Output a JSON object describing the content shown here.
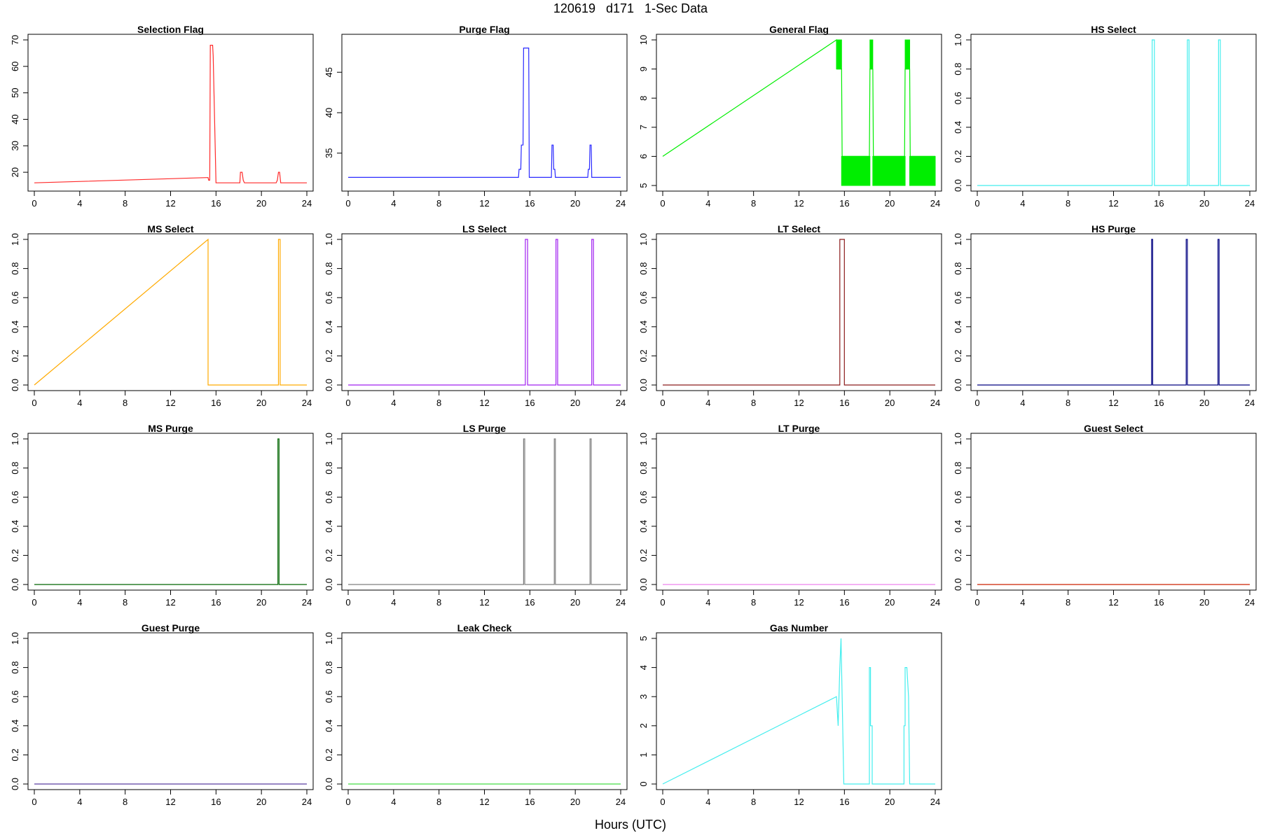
{
  "figure": {
    "title": "120619   d171   1-Sec Data",
    "xlabel": "Hours (UTC)"
  },
  "chart_data": [
    {
      "type": "line",
      "title": "Selection Flag",
      "color": "#ff2a2a",
      "xlim": [
        0,
        24
      ],
      "ylim": [
        15,
        70
      ],
      "xticks": [
        0,
        4,
        8,
        12,
        16,
        20,
        24
      ],
      "yticks": [
        20,
        30,
        40,
        50,
        60,
        70
      ],
      "series": [
        {
          "name": "Selection Flag",
          "x": [
            0,
            15.2,
            15.3,
            15.35,
            15.45,
            15.5,
            15.7,
            15.75,
            16,
            18.1,
            18.15,
            18.3,
            18.4,
            18.5,
            21.3,
            21.4,
            21.5,
            21.6,
            21.7,
            24
          ],
          "y": [
            16,
            18,
            18,
            17,
            17,
            68,
            68,
            64,
            16,
            16,
            20,
            20,
            17,
            16,
            16,
            17,
            20,
            20,
            16,
            16
          ]
        }
      ]
    },
    {
      "type": "line",
      "title": "Purge Flag",
      "color": "#2a2aff",
      "xlim": [
        0,
        24
      ],
      "ylim": [
        31,
        49
      ],
      "xticks": [
        0,
        4,
        8,
        12,
        16,
        20,
        24
      ],
      "yticks": [
        35,
        40,
        45
      ],
      "series": [
        {
          "name": "Purge Flag",
          "x": [
            0,
            15,
            15.05,
            15.2,
            15.25,
            15.4,
            15.45,
            15.5,
            15.55,
            15.9,
            15.95,
            17.9,
            17.95,
            18.05,
            18.1,
            18.2,
            18.25,
            21.1,
            21.15,
            21.25,
            21.3,
            21.4,
            21.45,
            24
          ],
          "y": [
            32,
            32,
            33,
            33,
            36,
            36,
            48,
            48,
            48,
            48,
            32,
            32,
            36,
            36,
            33,
            33,
            32,
            32,
            33,
            33,
            36,
            36,
            32,
            32
          ]
        }
      ]
    },
    {
      "type": "line",
      "title": "General Flag",
      "color": "#00ee00",
      "xlim": [
        0,
        24
      ],
      "ylim": [
        5,
        10
      ],
      "xticks": [
        0,
        4,
        8,
        12,
        16,
        20,
        24
      ],
      "yticks": [
        5,
        6,
        7,
        8,
        9,
        10
      ],
      "series": [
        {
          "name": "General Flag",
          "x": [
            0,
            15.3,
            15.35,
            15.75,
            15.8,
            18.2,
            18.25,
            18.5,
            18.55,
            21.3,
            21.35,
            21.75,
            21.8,
            24
          ],
          "y": [
            6,
            10,
            9,
            9,
            6,
            6,
            9,
            9,
            6,
            6,
            9,
            9,
            6,
            6
          ]
        }
      ],
      "filled_bands": [
        {
          "x0": 15.3,
          "x1": 15.75,
          "y0": 9,
          "y1": 10
        },
        {
          "x0": 18.25,
          "x1": 18.5,
          "y0": 9,
          "y1": 10
        },
        {
          "x0": 21.35,
          "x1": 21.75,
          "y0": 9,
          "y1": 10
        },
        {
          "x0": 15.75,
          "x1": 18.25,
          "y0": 5,
          "y1": 6
        },
        {
          "x0": 18.5,
          "x1": 21.35,
          "y0": 5,
          "y1": 6
        },
        {
          "x0": 21.75,
          "x1": 24,
          "y0": 5,
          "y1": 6
        }
      ]
    },
    {
      "type": "line",
      "title": "HS Select",
      "color": "#44eeee",
      "xlim": [
        0,
        24
      ],
      "ylim": [
        0,
        1
      ],
      "xticks": [
        0,
        4,
        8,
        12,
        16,
        20,
        24
      ],
      "yticks": [
        0,
        0.2,
        0.4,
        0.6,
        0.8,
        1
      ],
      "series": [
        {
          "name": "HS Select",
          "x": [
            0,
            15.4,
            15.4,
            15.6,
            15.6,
            18.5,
            18.5,
            18.65,
            18.65,
            21.25,
            21.25,
            21.4,
            21.4,
            24
          ],
          "y": [
            0,
            0,
            1,
            1,
            0,
            0,
            1,
            1,
            0,
            0,
            1,
            1,
            0,
            0
          ]
        }
      ]
    },
    {
      "type": "line",
      "title": "MS Select",
      "color": "#ffaa00",
      "xlim": [
        0,
        24
      ],
      "ylim": [
        0,
        1
      ],
      "xticks": [
        0,
        4,
        8,
        12,
        16,
        20,
        24
      ],
      "yticks": [
        0,
        0.2,
        0.4,
        0.6,
        0.8,
        1
      ],
      "series": [
        {
          "name": "MS Select",
          "x": [
            0,
            15.3,
            15.3,
            21.5,
            21.5,
            21.65,
            21.65,
            24
          ],
          "y": [
            0,
            1,
            0,
            0,
            1,
            1,
            0,
            0
          ]
        }
      ]
    },
    {
      "type": "line",
      "title": "LS Select",
      "color": "#a020f0",
      "xlim": [
        0,
        24
      ],
      "ylim": [
        0,
        1
      ],
      "xticks": [
        0,
        4,
        8,
        12,
        16,
        20,
        24
      ],
      "yticks": [
        0,
        0.2,
        0.4,
        0.6,
        0.8,
        1
      ],
      "series": [
        {
          "name": "LS Select",
          "x": [
            0,
            15.6,
            15.6,
            15.8,
            15.8,
            18.3,
            18.3,
            18.45,
            18.45,
            21.45,
            21.45,
            21.6,
            21.6,
            24
          ],
          "y": [
            0,
            0,
            1,
            1,
            0,
            0,
            1,
            1,
            0,
            0,
            1,
            1,
            0,
            0
          ]
        }
      ]
    },
    {
      "type": "line",
      "title": "LT Select",
      "color": "#8b1a1a",
      "xlim": [
        0,
        24
      ],
      "ylim": [
        0,
        1
      ],
      "xticks": [
        0,
        4,
        8,
        12,
        16,
        20,
        24
      ],
      "yticks": [
        0,
        0.2,
        0.4,
        0.6,
        0.8,
        1
      ],
      "series": [
        {
          "name": "LT Select",
          "x": [
            0,
            15.6,
            15.6,
            16,
            16,
            24
          ],
          "y": [
            0,
            0,
            1,
            1,
            0,
            0
          ]
        }
      ]
    },
    {
      "type": "line",
      "title": "HS Purge",
      "color": "#000080",
      "xlim": [
        0,
        24
      ],
      "ylim": [
        0,
        1
      ],
      "xticks": [
        0,
        4,
        8,
        12,
        16,
        20,
        24
      ],
      "yticks": [
        0,
        0.2,
        0.4,
        0.6,
        0.8,
        1
      ],
      "series": [
        {
          "name": "HS Purge",
          "x": [
            0,
            15.35,
            15.35,
            15.45,
            15.45,
            18.4,
            18.4,
            18.5,
            18.5,
            21.2,
            21.2,
            21.3,
            21.3,
            24
          ],
          "y": [
            0,
            0,
            1,
            1,
            0,
            0,
            1,
            1,
            0,
            0,
            1,
            1,
            0,
            0
          ]
        }
      ]
    },
    {
      "type": "line",
      "title": "MS Purge",
      "color": "#006400",
      "xlim": [
        0,
        24
      ],
      "ylim": [
        0,
        1
      ],
      "xticks": [
        0,
        4,
        8,
        12,
        16,
        20,
        24
      ],
      "yticks": [
        0,
        0.2,
        0.4,
        0.6,
        0.8,
        1
      ],
      "series": [
        {
          "name": "MS Purge",
          "x": [
            0,
            21.45,
            21.45,
            21.55,
            21.55,
            24
          ],
          "y": [
            0,
            0,
            1,
            1,
            0,
            0
          ]
        }
      ]
    },
    {
      "type": "line",
      "title": "LS Purge",
      "color": "#7f7f7f",
      "xlim": [
        0,
        24
      ],
      "ylim": [
        0,
        1
      ],
      "xticks": [
        0,
        4,
        8,
        12,
        16,
        20,
        24
      ],
      "yticks": [
        0,
        0.2,
        0.4,
        0.6,
        0.8,
        1
      ],
      "series": [
        {
          "name": "LS Purge",
          "x": [
            0,
            15.45,
            15.45,
            15.55,
            15.55,
            18.15,
            18.15,
            18.25,
            18.25,
            21.3,
            21.3,
            21.4,
            21.4,
            24
          ],
          "y": [
            0,
            0,
            1,
            1,
            0,
            0,
            1,
            1,
            0,
            0,
            1,
            1,
            0,
            0
          ]
        }
      ]
    },
    {
      "type": "line",
      "title": "LT Purge",
      "color": "#ee82ee",
      "xlim": [
        0,
        24
      ],
      "ylim": [
        0,
        1
      ],
      "xticks": [
        0,
        4,
        8,
        12,
        16,
        20,
        24
      ],
      "yticks": [
        0,
        0.2,
        0.4,
        0.6,
        0.8,
        1
      ],
      "series": [
        {
          "name": "LT Purge",
          "x": [
            0,
            24
          ],
          "y": [
            0,
            0
          ]
        }
      ]
    },
    {
      "type": "line",
      "title": "Guest Select",
      "color": "#cc2200",
      "xlim": [
        0,
        24
      ],
      "ylim": [
        0,
        1
      ],
      "xticks": [
        0,
        4,
        8,
        12,
        16,
        20,
        24
      ],
      "yticks": [
        0,
        0.2,
        0.4,
        0.6,
        0.8,
        1
      ],
      "series": [
        {
          "name": "Guest Select",
          "x": [
            0,
            24
          ],
          "y": [
            0,
            0
          ]
        }
      ]
    },
    {
      "type": "line",
      "title": "Guest Purge",
      "color": "#5b3fa0",
      "xlim": [
        0,
        24
      ],
      "ylim": [
        0,
        1
      ],
      "xticks": [
        0,
        4,
        8,
        12,
        16,
        20,
        24
      ],
      "yticks": [
        0,
        0.2,
        0.4,
        0.6,
        0.8,
        1
      ],
      "series": [
        {
          "name": "Guest Purge",
          "x": [
            0,
            24
          ],
          "y": [
            0,
            0
          ]
        }
      ]
    },
    {
      "type": "line",
      "title": "Leak Check",
      "color": "#44dd44",
      "xlim": [
        0,
        24
      ],
      "ylim": [
        0,
        1
      ],
      "xticks": [
        0,
        4,
        8,
        12,
        16,
        20,
        24
      ],
      "yticks": [
        0,
        0.2,
        0.4,
        0.6,
        0.8,
        1
      ],
      "series": [
        {
          "name": "Leak Check",
          "x": [
            0,
            24
          ],
          "y": [
            0,
            0
          ]
        }
      ]
    },
    {
      "type": "line",
      "title": "Gas Number",
      "color": "#44eeee",
      "xlim": [
        0,
        24
      ],
      "ylim": [
        0,
        5
      ],
      "xticks": [
        0,
        4,
        8,
        12,
        16,
        20,
        24
      ],
      "yticks": [
        0,
        1,
        2,
        3,
        4,
        5
      ],
      "series": [
        {
          "name": "Gas Number",
          "x": [
            0,
            15.3,
            15.3,
            15.45,
            15.45,
            15.6,
            15.6,
            15.7,
            15.7,
            15.95,
            15.95,
            18.2,
            18.2,
            18.3,
            18.3,
            18.45,
            18.45,
            21.25,
            21.25,
            21.35,
            21.35,
            21.5,
            21.5,
            21.65,
            21.65,
            21.75,
            21.75,
            24
          ],
          "y": [
            0,
            3,
            3,
            2,
            2,
            4,
            4,
            5,
            5,
            0,
            0,
            0,
            4,
            4,
            2,
            2,
            0,
            0,
            2,
            2,
            4,
            4,
            4,
            3,
            3,
            0,
            0,
            0
          ]
        }
      ]
    }
  ]
}
